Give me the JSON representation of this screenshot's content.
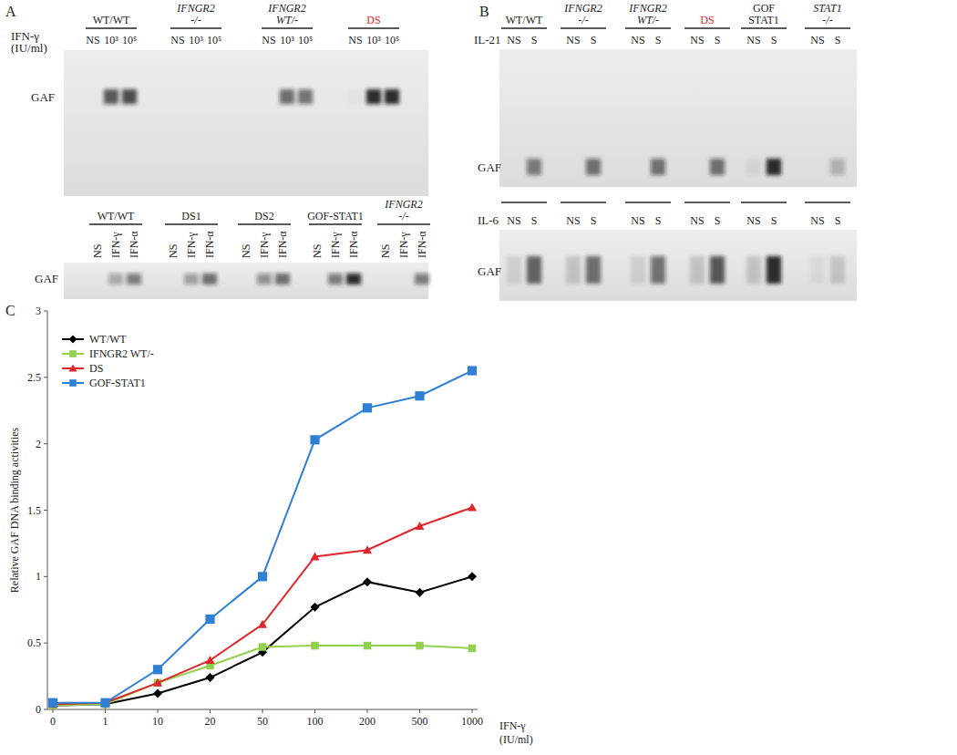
{
  "panel_labels": [
    "A",
    "B",
    "C"
  ],
  "gels": [
    {
      "band_label": "GAF",
      "treatment": [
        "IFN-γ",
        "(IU/ml)"
      ],
      "lanes": [
        "NS",
        "10³",
        "10⁵"
      ],
      "groups": [
        {
          "name": [
            "WT/WT"
          ],
          "bands": [
            0,
            0.7,
            0.75
          ]
        },
        {
          "name": [
            "IFNGR2",
            "-/-"
          ],
          "font_style": "italic",
          "bands": [
            0,
            0,
            0
          ]
        },
        {
          "name": [
            "IFNGR2",
            "WT/-"
          ],
          "font_style": "italic",
          "bands": [
            0,
            0.6,
            0.55
          ]
        },
        {
          "name": [
            "DS"
          ],
          "color": "#e0262b",
          "bands": [
            0.02,
            0.9,
            0.9
          ]
        }
      ]
    },
    {
      "band_label": "GAF",
      "lanes": [
        "NS",
        "IFN-γ",
        "IFN-α"
      ],
      "groups": [
        {
          "name": [
            "WT/WT"
          ],
          "bands": [
            0,
            0.3,
            0.5
          ]
        },
        {
          "name": [
            "DS1"
          ],
          "bands": [
            0,
            0.35,
            0.6
          ]
        },
        {
          "name": [
            "DS2"
          ],
          "bands": [
            0,
            0.4,
            0.6
          ]
        },
        {
          "name": [
            "GOF-STAT1"
          ],
          "bands": [
            0,
            0.5,
            0.9
          ]
        },
        {
          "name": [
            "IFNGR2",
            "-/-"
          ],
          "font_style": "italic",
          "bands": [
            0,
            0,
            0.5
          ]
        }
      ]
    },
    {
      "band_label": "GAF",
      "treatment": [
        "IL-21"
      ],
      "lanes": [
        "NS",
        "S"
      ],
      "groups": [
        {
          "name": [
            "WT/WT"
          ],
          "bands": [
            0,
            0.5
          ]
        },
        {
          "name": [
            "IFNGR2",
            "-/-"
          ],
          "font_style": "italic",
          "bands": [
            0,
            0.55
          ]
        },
        {
          "name": [
            "IFNGR2",
            "WT/-"
          ],
          "font_style": "italic",
          "bands": [
            0,
            0.55
          ]
        },
        {
          "name": [
            "DS"
          ],
          "color": "#e0262b",
          "bands": [
            0,
            0.55
          ]
        },
        {
          "name": [
            "GOF",
            "STAT1"
          ],
          "bands": [
            0.05,
            0.9
          ]
        },
        {
          "name": [
            "STAT1",
            "-/-"
          ],
          "font_style": "italic",
          "bands": [
            0,
            0.25
          ]
        }
      ]
    },
    {
      "band_label": "GAF",
      "treatment": [
        "IL-6"
      ],
      "lanes": [
        "NS",
        "S"
      ],
      "groups": [
        {
          "bands": [
            0.1,
            0.65
          ]
        },
        {
          "bands": [
            0.15,
            0.6
          ]
        },
        {
          "bands": [
            0.1,
            0.55
          ]
        },
        {
          "bands": [
            0.15,
            0.7
          ]
        },
        {
          "bands": [
            0.15,
            0.9
          ]
        },
        {
          "bands": [
            0.05,
            0.15
          ]
        }
      ]
    }
  ],
  "chart_data": {
    "type": "line",
    "y_label": "Relative GAF DNA binding activities",
    "x_label": [
      "IFN-γ",
      "(IU/ml)"
    ],
    "categories": [
      "0",
      "1",
      "10",
      "20",
      "50",
      "100",
      "200",
      "500",
      "1000"
    ],
    "ylim": [
      0,
      3
    ],
    "yticks": [
      0,
      0.5,
      1,
      1.5,
      2,
      2.5,
      3
    ],
    "legend": "upper left",
    "series": [
      {
        "name": "WT/WT",
        "color": "#000000",
        "marker": "diamond",
        "values": [
          0.03,
          0.04,
          0.12,
          0.24,
          0.43,
          0.77,
          0.96,
          0.88,
          1.0
        ]
      },
      {
        "name": "IFNGR2 WT/-",
        "color": "#92d050",
        "marker": "square",
        "values": [
          0.03,
          0.04,
          0.2,
          0.33,
          0.47,
          0.48,
          0.48,
          0.48,
          0.46
        ]
      },
      {
        "name": "DS",
        "color": "#e0262b",
        "marker": "triangle",
        "values": [
          0.04,
          0.05,
          0.2,
          0.37,
          0.64,
          1.15,
          1.2,
          1.38,
          1.52
        ]
      },
      {
        "name": "GOF-STAT1",
        "color": "#2f7fd3",
        "marker": "square",
        "values": [
          0.05,
          0.05,
          0.3,
          0.68,
          1.0,
          2.03,
          2.27,
          2.36,
          2.55
        ]
      }
    ]
  }
}
